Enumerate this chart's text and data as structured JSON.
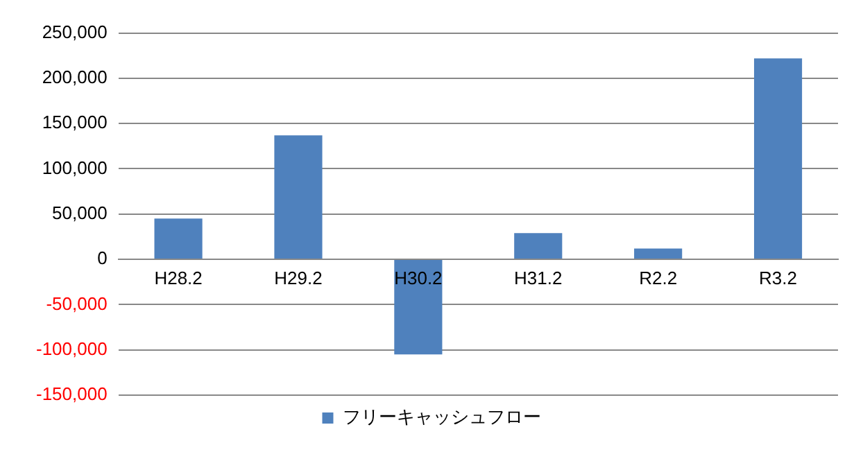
{
  "chart_data": {
    "type": "bar",
    "categories": [
      "H28.2",
      "H29.2",
      "H30.2",
      "H31.2",
      "R2.2",
      "R3.2"
    ],
    "series": [
      {
        "name": "フリーキャッシュフロー",
        "color": "#4f81bd",
        "values": [
          45000,
          137000,
          -105000,
          29000,
          12000,
          222000
        ]
      }
    ],
    "ylim": [
      -150000,
      250000
    ],
    "yticks": [
      {
        "value": -150000,
        "label": "-150,000"
      },
      {
        "value": -100000,
        "label": "-100,000"
      },
      {
        "value": -50000,
        "label": "-50,000"
      },
      {
        "value": 0,
        "label": "0"
      },
      {
        "value": 50000,
        "label": "50,000"
      },
      {
        "value": 100000,
        "label": "100,000"
      },
      {
        "value": 150000,
        "label": "150,000"
      },
      {
        "value": 200000,
        "label": "200,000"
      },
      {
        "value": 250000,
        "label": "250,000"
      }
    ],
    "grid": "y",
    "legend": "bottom"
  }
}
